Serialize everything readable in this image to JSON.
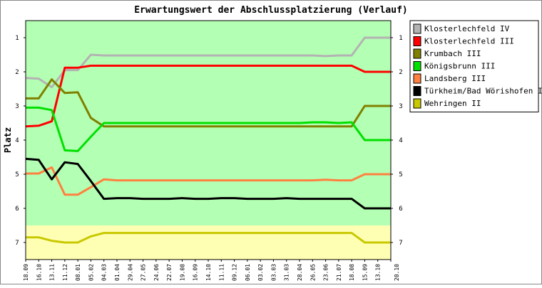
{
  "chart_data": {
    "type": "line",
    "title": "Erwartungswert der Abschlussplatzierung (Verlauf)",
    "ylabel": "Platz",
    "ylim": [
      0.5,
      7.5
    ],
    "y_inverted": true,
    "yticks": [
      1,
      2,
      3,
      4,
      5,
      6,
      7
    ],
    "bands": [
      {
        "from": 0.5,
        "to": 6.5,
        "color": "#b3ffb3"
      },
      {
        "from": 6.5,
        "to": 7.5,
        "color": "#ffffb3"
      }
    ],
    "legend_position": "top-right",
    "x": [
      "18.09",
      "16.10",
      "13.11",
      "11.12",
      "08.01",
      "05.02",
      "04.03",
      "01.04",
      "29.04",
      "27.05",
      "24.06",
      "22.07",
      "19.08",
      "16.09",
      "14.10",
      "11.11",
      "09.12",
      "06.01",
      "03.02",
      "03.03",
      "31.03",
      "28.04",
      "26.05",
      "23.06",
      "21.07",
      "18.08",
      "15.09",
      "13.10",
      "20.10"
    ],
    "series": [
      {
        "name": "Klosterlechfeld IV",
        "color": "#b3b3b3",
        "values": [
          2.18,
          2.2,
          2.45,
          1.95,
          1.95,
          1.5,
          1.52,
          1.52,
          1.52,
          1.52,
          1.52,
          1.52,
          1.52,
          1.52,
          1.52,
          1.52,
          1.52,
          1.52,
          1.52,
          1.52,
          1.52,
          1.52,
          1.52,
          1.54,
          1.52,
          1.52,
          1.0,
          1.0,
          1.0
        ]
      },
      {
        "name": "Klosterlechfeld III",
        "color": "#ff0000",
        "values": [
          3.6,
          3.58,
          3.45,
          1.88,
          1.88,
          1.82,
          1.82,
          1.82,
          1.82,
          1.82,
          1.82,
          1.82,
          1.82,
          1.82,
          1.82,
          1.82,
          1.82,
          1.82,
          1.82,
          1.82,
          1.82,
          1.82,
          1.82,
          1.82,
          1.82,
          1.82,
          2.0,
          2.0,
          2.0
        ]
      },
      {
        "name": "Krumbach III",
        "color": "#808000",
        "values": [
          2.78,
          2.78,
          2.22,
          2.62,
          2.6,
          3.35,
          3.6,
          3.6,
          3.6,
          3.6,
          3.6,
          3.6,
          3.6,
          3.6,
          3.6,
          3.6,
          3.6,
          3.6,
          3.6,
          3.6,
          3.6,
          3.6,
          3.6,
          3.6,
          3.6,
          3.6,
          3.0,
          3.0,
          3.0
        ]
      },
      {
        "name": "Königsbrunn III",
        "color": "#00e000",
        "values": [
          3.05,
          3.05,
          3.12,
          4.3,
          4.32,
          3.9,
          3.5,
          3.5,
          3.5,
          3.5,
          3.5,
          3.5,
          3.5,
          3.5,
          3.5,
          3.5,
          3.5,
          3.5,
          3.5,
          3.5,
          3.5,
          3.5,
          3.48,
          3.48,
          3.5,
          3.48,
          4.0,
          4.0,
          4.0
        ]
      },
      {
        "name": "Landsberg III",
        "color": "#ff8040",
        "values": [
          4.98,
          4.98,
          4.8,
          5.6,
          5.6,
          5.38,
          5.15,
          5.18,
          5.18,
          5.18,
          5.18,
          5.18,
          5.18,
          5.18,
          5.18,
          5.18,
          5.18,
          5.18,
          5.18,
          5.18,
          5.18,
          5.18,
          5.18,
          5.16,
          5.18,
          5.18,
          5.0,
          5.0,
          5.0
        ]
      },
      {
        "name": "Türkheim/Bad Wörishofen II",
        "color": "#000000",
        "values": [
          4.55,
          4.58,
          5.15,
          4.65,
          4.7,
          5.2,
          5.72,
          5.7,
          5.7,
          5.72,
          5.72,
          5.72,
          5.7,
          5.72,
          5.72,
          5.7,
          5.7,
          5.72,
          5.72,
          5.72,
          5.7,
          5.72,
          5.72,
          5.72,
          5.72,
          5.72,
          6.0,
          6.0,
          6.0
        ]
      },
      {
        "name": "Wehringen II",
        "color": "#c8c800",
        "values": [
          6.85,
          6.85,
          6.95,
          7.0,
          7.0,
          6.82,
          6.72,
          6.72,
          6.72,
          6.72,
          6.72,
          6.72,
          6.72,
          6.72,
          6.72,
          6.72,
          6.72,
          6.72,
          6.72,
          6.72,
          6.72,
          6.72,
          6.72,
          6.72,
          6.72,
          6.72,
          7.0,
          7.0,
          7.0
        ]
      }
    ]
  }
}
